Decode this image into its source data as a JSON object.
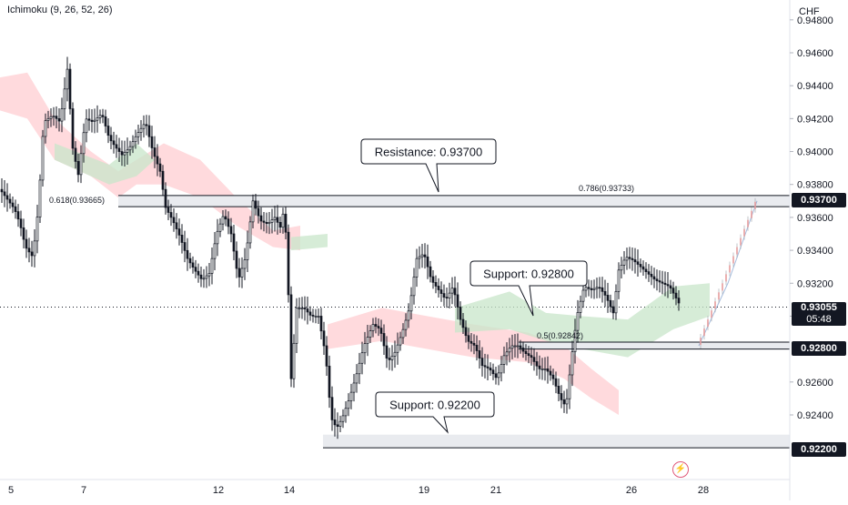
{
  "indicator": {
    "label": "Ichimoku (9, 26, 52, 26)"
  },
  "axis": {
    "currency": "CHF",
    "y_ticks": [
      "0.94800",
      "0.94600",
      "0.94400",
      "0.94200",
      "0.94000",
      "0.93800",
      "0.93600",
      "0.93400",
      "0.93200",
      "0.93000",
      "0.92600",
      "0.92400"
    ],
    "x_ticks": [
      "5",
      "7",
      "12",
      "14",
      "19",
      "21",
      "26",
      "28"
    ]
  },
  "price_tags": {
    "resistance": "0.93700",
    "current_price": "0.93055",
    "countdown": "05:48",
    "support_1": "0.92800",
    "support_2": "0.92200"
  },
  "annotations": {
    "resistance_label": "Resistance: 0.93700",
    "support_label_1": "Support: 0.92800",
    "support_label_2": "Support: 0.92200",
    "fib_0618": "0.618(0.93665)",
    "fib_0786": "0.786(0.93733)",
    "fib_05": "0.5(0.92842)"
  },
  "colors": {
    "candle": "#131722",
    "cloud_bull": "#c8e6c9",
    "cloud_bear": "#ffcdd2",
    "zone": "#e9ebef",
    "level_line": "#131722"
  },
  "chart_data": {
    "type": "candlestick",
    "symbol_currency": "CHF",
    "indicator": "Ichimoku (9, 26, 52, 26)",
    "ylim": [
      0.9205,
      0.949
    ],
    "x_tick_labels": [
      "5",
      "7",
      "12",
      "14",
      "19",
      "21",
      "26",
      "28"
    ],
    "levels": [
      {
        "label": "Resistance: 0.93700",
        "value": 0.937
      },
      {
        "label": "Support: 0.92800",
        "value": 0.928
      },
      {
        "label": "Support: 0.92200",
        "value": 0.922
      }
    ],
    "fibonacci": [
      {
        "label": "0.618(0.93665)",
        "value": 0.93665
      },
      {
        "label": "0.786(0.93733)",
        "value": 0.93733
      },
      {
        "label": "0.5(0.92842)",
        "value": 0.92842
      }
    ],
    "current_price": 0.93055,
    "close_path": [
      [
        0,
        0.9377
      ],
      [
        8,
        0.9371
      ],
      [
        16,
        0.9365
      ],
      [
        22,
        0.9356
      ],
      [
        28,
        0.9342
      ],
      [
        36,
        0.9336
      ],
      [
        42,
        0.9365
      ],
      [
        48,
        0.9418
      ],
      [
        58,
        0.9422
      ],
      [
        66,
        0.9418
      ],
      [
        74,
        0.945
      ],
      [
        80,
        0.9402
      ],
      [
        86,
        0.9386
      ],
      [
        94,
        0.942
      ],
      [
        102,
        0.9418
      ],
      [
        112,
        0.9423
      ],
      [
        120,
        0.9408
      ],
      [
        128,
        0.9402
      ],
      [
        134,
        0.9398
      ],
      [
        142,
        0.9402
      ],
      [
        150,
        0.941
      ],
      [
        160,
        0.9418
      ],
      [
        168,
        0.94
      ],
      [
        176,
        0.9388
      ],
      [
        182,
        0.9366
      ],
      [
        190,
        0.9358
      ],
      [
        198,
        0.9348
      ],
      [
        206,
        0.9335
      ],
      [
        214,
        0.9328
      ],
      [
        222,
        0.9322
      ],
      [
        230,
        0.9326
      ],
      [
        238,
        0.935
      ],
      [
        246,
        0.9362
      ],
      [
        254,
        0.935
      ],
      [
        262,
        0.9322
      ],
      [
        270,
        0.9336
      ],
      [
        278,
        0.937
      ],
      [
        286,
        0.9358
      ],
      [
        294,
        0.9356
      ],
      [
        302,
        0.936
      ],
      [
        310,
        0.9352
      ],
      [
        312,
        0.9372
      ],
      [
        316,
        0.933
      ],
      [
        320,
        0.9262
      ],
      [
        326,
        0.9305
      ],
      [
        334,
        0.9305
      ],
      [
        342,
        0.93
      ],
      [
        350,
        0.93
      ],
      [
        358,
        0.9276
      ],
      [
        364,
        0.9238
      ],
      [
        370,
        0.9232
      ],
      [
        376,
        0.9238
      ],
      [
        384,
        0.925
      ],
      [
        392,
        0.9265
      ],
      [
        400,
        0.9282
      ],
      [
        410,
        0.9295
      ],
      [
        418,
        0.9292
      ],
      [
        426,
        0.9272
      ],
      [
        434,
        0.9278
      ],
      [
        442,
        0.929
      ],
      [
        450,
        0.9305
      ],
      [
        458,
        0.9335
      ],
      [
        466,
        0.9338
      ],
      [
        474,
        0.9322
      ],
      [
        482,
        0.9316
      ],
      [
        490,
        0.931
      ],
      [
        498,
        0.9318
      ],
      [
        506,
        0.9298
      ],
      [
        514,
        0.9285
      ],
      [
        522,
        0.9282
      ],
      [
        530,
        0.927
      ],
      [
        538,
        0.9268
      ],
      [
        546,
        0.9262
      ],
      [
        554,
        0.9276
      ],
      [
        562,
        0.9282
      ],
      [
        570,
        0.9282
      ],
      [
        576,
        0.9278
      ],
      [
        584,
        0.9275
      ],
      [
        592,
        0.9268
      ],
      [
        600,
        0.9268
      ],
      [
        608,
        0.9262
      ],
      [
        616,
        0.925
      ],
      [
        622,
        0.9245
      ],
      [
        628,
        0.9274
      ],
      [
        634,
        0.93
      ],
      [
        642,
        0.9318
      ],
      [
        650,
        0.9316
      ],
      [
        658,
        0.9318
      ],
      [
        666,
        0.9312
      ],
      [
        674,
        0.9302
      ],
      [
        680,
        0.9328
      ],
      [
        688,
        0.9336
      ],
      [
        696,
        0.9334
      ],
      [
        704,
        0.933
      ],
      [
        712,
        0.9326
      ],
      [
        720,
        0.9322
      ],
      [
        728,
        0.932
      ],
      [
        736,
        0.9318
      ],
      [
        742,
        0.9312
      ],
      [
        748,
        0.9306
      ]
    ],
    "projection_path": [
      [
        768,
        0.9282
      ],
      [
        800,
        0.932
      ],
      [
        832,
        0.937
      ]
    ]
  }
}
